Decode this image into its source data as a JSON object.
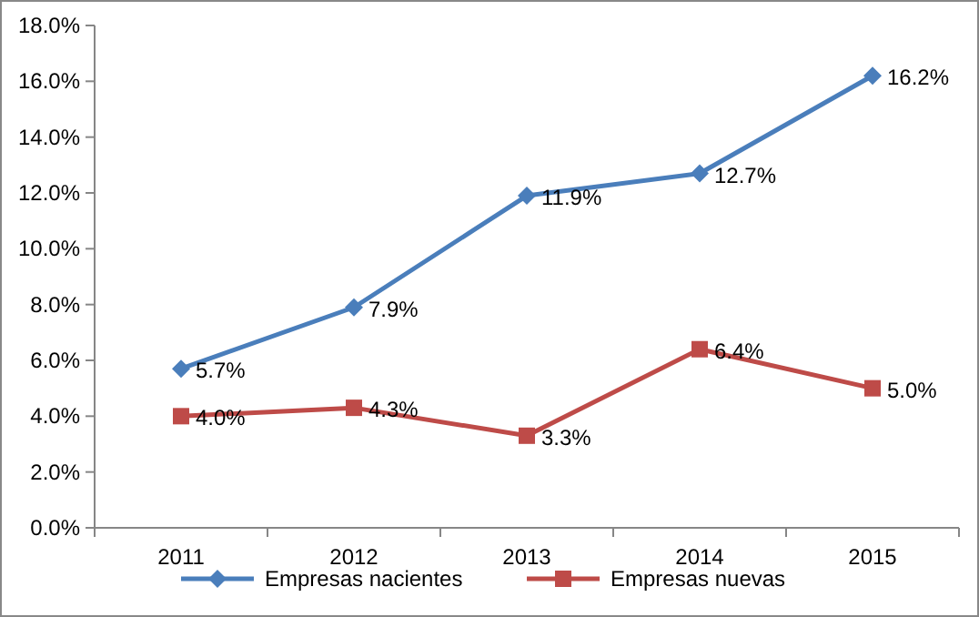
{
  "chart_data": {
    "type": "line",
    "categories": [
      "2011",
      "2012",
      "2013",
      "2014",
      "2015"
    ],
    "series": [
      {
        "name": "Empresas nacientes",
        "color": "#4a7ebb",
        "marker": "diamond",
        "values": [
          5.7,
          7.9,
          11.9,
          12.7,
          16.2
        ],
        "value_labels": [
          "5.7%",
          "7.9%",
          "11.9%",
          "12.7%",
          "16.2%"
        ]
      },
      {
        "name": "Empresas nuevas",
        "color": "#be4b48",
        "marker": "square",
        "values": [
          4.0,
          4.3,
          3.3,
          6.4,
          5.0
        ],
        "value_labels": [
          "4.0%",
          "4.3%",
          "3.3%",
          "6.4%",
          "5.0%"
        ]
      }
    ],
    "ylim": [
      0,
      18
    ],
    "yticks": [
      {
        "value": 0,
        "label": "0.0%"
      },
      {
        "value": 2,
        "label": "2.0%"
      },
      {
        "value": 4,
        "label": "4.0%"
      },
      {
        "value": 6,
        "label": "6.0%"
      },
      {
        "value": 8,
        "label": "8.0%"
      },
      {
        "value": 10,
        "label": "10.0%"
      },
      {
        "value": 12,
        "label": "12.0%"
      },
      {
        "value": 14,
        "label": "14.0%"
      },
      {
        "value": 16,
        "label": "16.0%"
      },
      {
        "value": 18,
        "label": "18.0%"
      }
    ],
    "grid": false,
    "legend": "bottom",
    "line_style": "solid"
  }
}
